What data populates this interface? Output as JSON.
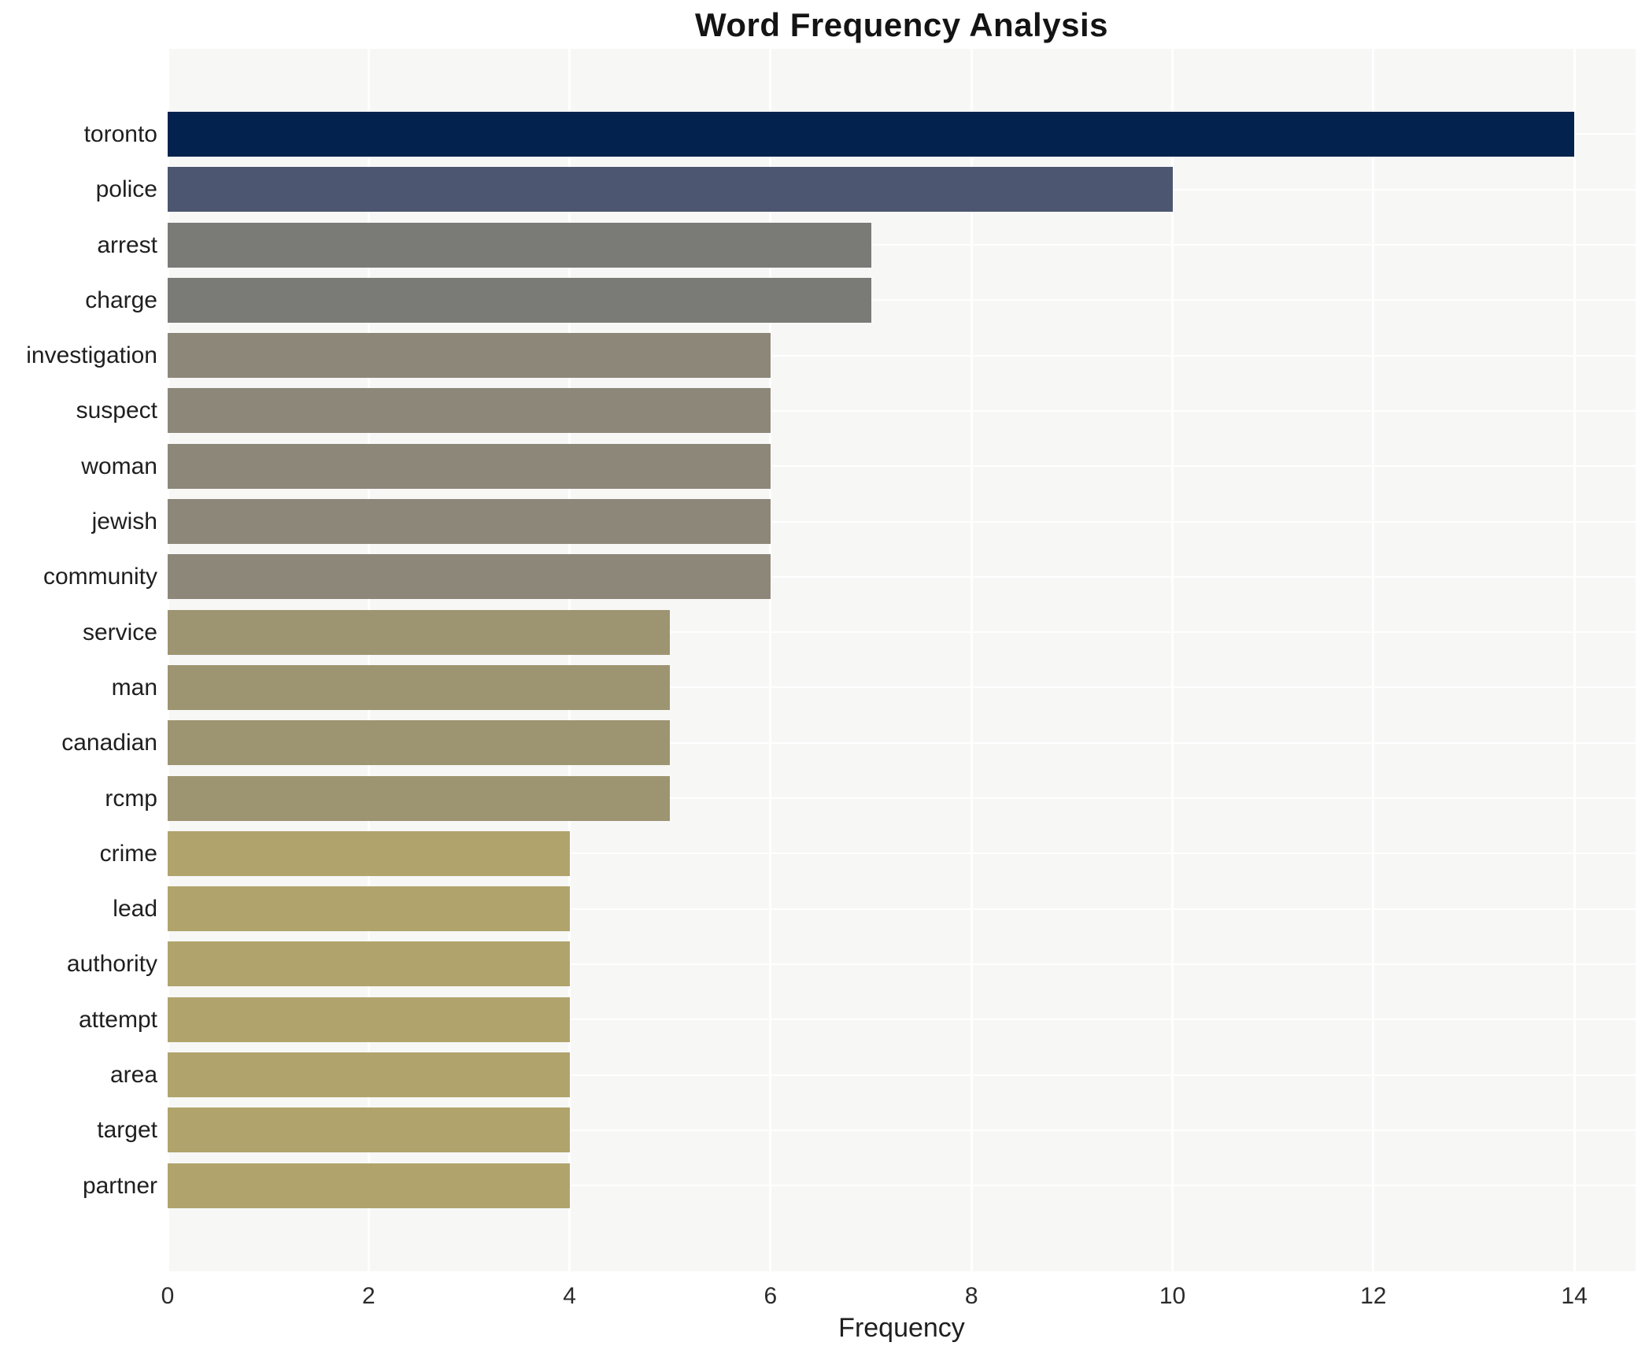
{
  "chart_data": {
    "type": "bar",
    "orientation": "horizontal",
    "title": "Word Frequency Analysis",
    "xlabel": "Frequency",
    "ylabel": "",
    "xlim": [
      0,
      14.6
    ],
    "x_ticks": [
      0,
      2,
      4,
      6,
      8,
      10,
      12,
      14
    ],
    "grid": "white vertical gridlines at even ticks and white horizontal gridlines at category centers on light gray panel",
    "legend": "none",
    "categories": [
      "toronto",
      "police",
      "arrest",
      "charge",
      "investigation",
      "suspect",
      "woman",
      "jewish",
      "community",
      "service",
      "man",
      "canadian",
      "rcmp",
      "crime",
      "lead",
      "authority",
      "attempt",
      "area",
      "target",
      "partner"
    ],
    "values": [
      14,
      10,
      7,
      7,
      6,
      6,
      6,
      6,
      6,
      5,
      5,
      5,
      5,
      4,
      4,
      4,
      4,
      4,
      4,
      4
    ],
    "bar_colors": [
      "#03224e",
      "#4c5670",
      "#7a7a77",
      "#7a7a77",
      "#8d877a",
      "#8d877a",
      "#8d877a",
      "#8d877a",
      "#8d877a",
      "#9d9471",
      "#9d9471",
      "#9d9471",
      "#9d9471",
      "#b0a46c",
      "#b0a46c",
      "#b0a46c",
      "#b0a46c",
      "#b0a46c",
      "#b0a46c",
      "#b0a46c"
    ]
  },
  "style": {
    "panel_background": "#f7f7f6",
    "grid_color": "#ffffff",
    "figure_background": "#ffffff",
    "title_color": "#141414",
    "tick_label_color": "#2b2b2b",
    "category_label_color": "#1f1f1f"
  }
}
